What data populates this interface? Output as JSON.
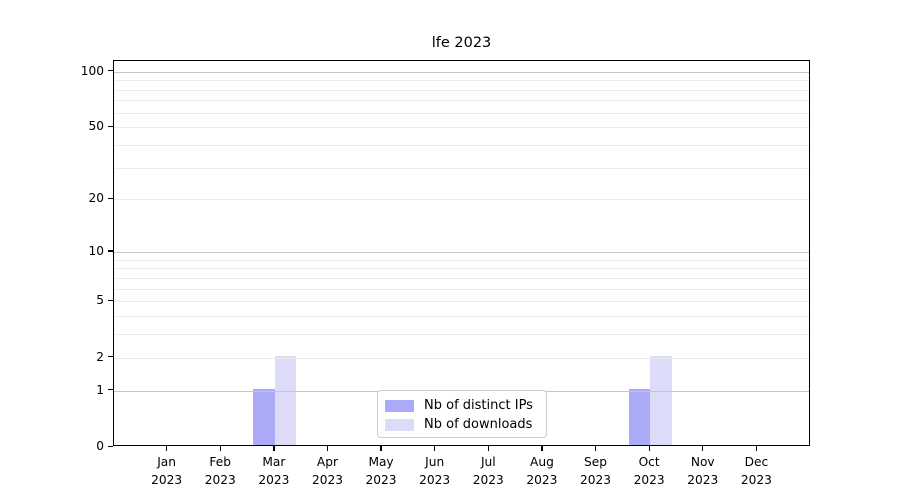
{
  "chart_data": {
    "type": "bar",
    "title": "lfe 2023",
    "categories": [
      "Jan 2023",
      "Feb 2023",
      "Mar 2023",
      "Apr 2023",
      "May 2023",
      "Jun 2023",
      "Jul 2023",
      "Aug 2023",
      "Sep 2023",
      "Oct 2023",
      "Nov 2023",
      "Dec 2023"
    ],
    "series": [
      {
        "name": "Nb of distinct IPs",
        "color": "#aaaaf7",
        "values": [
          0,
          0,
          1,
          0,
          0,
          0,
          0,
          0,
          0,
          1,
          0,
          0
        ]
      },
      {
        "name": "Nb of downloads",
        "color": "#dcdcf9",
        "values": [
          0,
          0,
          2,
          0,
          0,
          0,
          0,
          0,
          0,
          2,
          0,
          0
        ]
      }
    ],
    "y_axis": {
      "scale": "log1p",
      "ticks": [
        0,
        1,
        2,
        5,
        10,
        20,
        50,
        100
      ],
      "max_value": 114
    },
    "x_axis": {
      "tick_labels_two_lines": true
    },
    "grid": {
      "major_values": [
        1,
        10,
        100
      ],
      "minor_values": [
        2,
        3,
        4,
        5,
        6,
        7,
        8,
        9,
        20,
        30,
        40,
        50,
        60,
        70,
        80,
        90
      ],
      "major_color": "#c6c6c6",
      "minor_color": "#ebebeb"
    },
    "legend": {
      "position": "lower-center"
    },
    "colors": {
      "background": "#ffffff",
      "spine": "#000000",
      "text": "#000000"
    }
  }
}
